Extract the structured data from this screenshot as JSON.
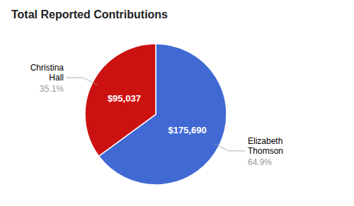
{
  "chart_data": {
    "type": "pie",
    "title": "Total Reported Contributions",
    "categories": [
      "Elizabeth\nThomson",
      "Christina\nHall"
    ],
    "values": [
      175690,
      95037
    ],
    "value_labels": [
      "$175,690",
      "$95,037"
    ],
    "percent_values": [
      64.9,
      35.1
    ],
    "percent_labels": [
      "64.9%",
      "35.1%"
    ],
    "colors": [
      "#4169d4",
      "#cc1111"
    ],
    "data_labels": true
  }
}
